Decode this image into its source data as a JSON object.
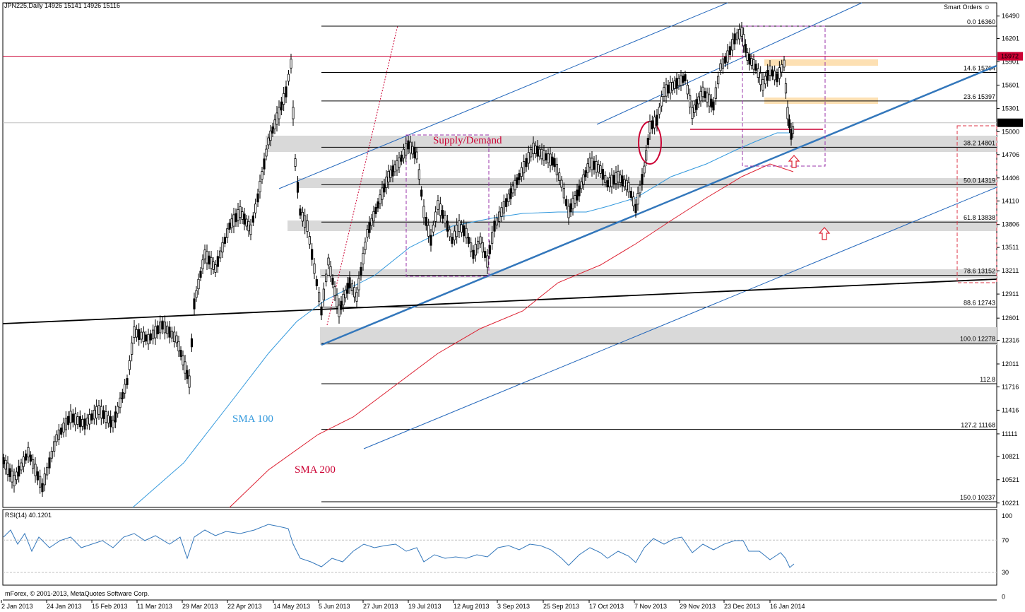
{
  "header": {
    "symbol_line": "JPN225,Daily  14926 15141 14926 15116",
    "indicator_label": "Smart Orders"
  },
  "rsi_panel": {
    "label": "RSI(14) 40.1201",
    "copyright": "mForex, © 2001-2013, MetaQuotes Software Corp."
  },
  "annotations": {
    "supply_demand": "Supply/Demand",
    "sma100": "SMA 100",
    "sma200": "SMA 200"
  },
  "colors": {
    "accent_red": "#cc0033",
    "sma100": "#3399dd",
    "sma200": "#dd2233",
    "channel": "#2266bb",
    "zone_gray": "#d9d9d9",
    "zone_orange": "#fde0b3",
    "box_purple": "#9933aa"
  },
  "chart_data": {
    "type": "candlestick",
    "ylim": [
      10237,
      16500
    ],
    "y_ticks": [
      "16490",
      "16201",
      "15901",
      "15601",
      "15301",
      "15000",
      "14706",
      "14406",
      "14110",
      "13806",
      "13511",
      "13211",
      "12911",
      "12601",
      "12316",
      "12011",
      "11716",
      "11416",
      "11111",
      "10821",
      "10521",
      "10221"
    ],
    "price_markers": [
      {
        "label": "15972",
        "value": 15972,
        "color": "#cc0033"
      },
      {
        "label": "15116",
        "value": 15116,
        "color": "#000000"
      }
    ],
    "x_labels": [
      "2 Jan 2013",
      "24 Jan 2013",
      "15 Feb 2013",
      "11 Mar 2013",
      "29 Mar 2013",
      "22 Apr 2013",
      "14 May 2013",
      "5 Jun 2013",
      "27 Jun 2013",
      "19 Jul 2013",
      "12 Aug 2013",
      "3 Sep 2013",
      "25 Sep 2013",
      "17 Oct 2013",
      "7 Nov 2013",
      "29 Nov 2013",
      "23 Dec 2013",
      "16 Jan 2014"
    ],
    "fibonacci_levels": [
      {
        "ratio": "0.0",
        "price": "16360",
        "value": 16360
      },
      {
        "ratio": "14.6",
        "price": "15764",
        "value": 15764
      },
      {
        "ratio": "23.6",
        "price": "15397",
        "value": 15397
      },
      {
        "ratio": "38.2",
        "price": "14801",
        "value": 14801
      },
      {
        "ratio": "50.0",
        "price": "14319",
        "value": 14319
      },
      {
        "ratio": "61.8",
        "price": "13838",
        "value": 13838
      },
      {
        "ratio": "78.6",
        "price": "13152",
        "value": 13152
      },
      {
        "ratio": "88.6",
        "price": "12743",
        "value": 12743
      },
      {
        "ratio": "100.0",
        "price": "12278",
        "value": 12278
      },
      {
        "ratio": "112.8",
        "price": "",
        "value": 11756
      },
      {
        "ratio": "127.2",
        "price": "11168",
        "value": 11168
      },
      {
        "ratio": "150.0",
        "price": "10237",
        "value": 10237
      }
    ],
    "rsi": {
      "ylim": [
        0,
        100
      ],
      "ticks": [
        "100",
        "70",
        "30",
        "0"
      ],
      "last": 40.1201
    }
  }
}
